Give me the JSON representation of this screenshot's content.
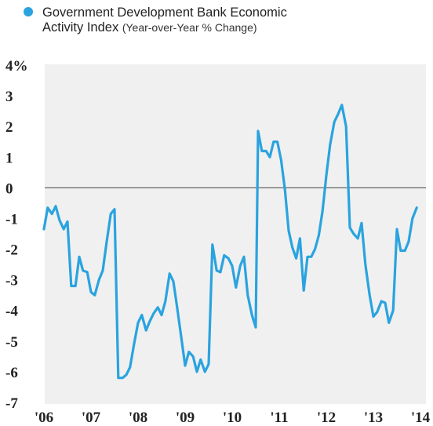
{
  "chart_data": {
    "type": "line",
    "title_line1": "Government Development Bank Economic",
    "title_line2": "Activity Index",
    "unit_note": "(Year-over-Year % Change)",
    "series_color": "#2aa3df",
    "zero_line_color": "#444444",
    "plot_background": "#f0f0f0",
    "ylim": [
      -7,
      4
    ],
    "y_ticks": [
      {
        "value": 4,
        "label": "4%"
      },
      {
        "value": 3,
        "label": "3"
      },
      {
        "value": 2,
        "label": "2"
      },
      {
        "value": 1,
        "label": "1"
      },
      {
        "value": 0,
        "label": "0"
      },
      {
        "value": -1,
        "label": "-1"
      },
      {
        "value": -2,
        "label": "-2"
      },
      {
        "value": -3,
        "label": "-3"
      },
      {
        "value": -4,
        "label": "-4"
      },
      {
        "value": -5,
        "label": "-5"
      },
      {
        "value": -6,
        "label": "-6"
      },
      {
        "value": -7,
        "label": "-7"
      }
    ],
    "xlim": [
      2006.0,
      2014.0
    ],
    "x_ticks": [
      {
        "value": 2006,
        "label": "'06"
      },
      {
        "value": 2007,
        "label": "'07"
      },
      {
        "value": 2008,
        "label": "'08"
      },
      {
        "value": 2009,
        "label": "'09"
      },
      {
        "value": 2010,
        "label": "'10"
      },
      {
        "value": 2011,
        "label": "'11"
      },
      {
        "value": 2012,
        "label": "'12"
      },
      {
        "value": 2013,
        "label": "'13"
      },
      {
        "value": 2014,
        "label": "'14"
      }
    ],
    "points": [
      [
        2006.0,
        -1.35
      ],
      [
        2006.08,
        -0.65
      ],
      [
        2006.17,
        -0.85
      ],
      [
        2006.25,
        -0.6
      ],
      [
        2006.33,
        -1.05
      ],
      [
        2006.42,
        -1.35
      ],
      [
        2006.5,
        -1.1
      ],
      [
        2006.58,
        -3.2
      ],
      [
        2006.67,
        -3.2
      ],
      [
        2006.75,
        -2.25
      ],
      [
        2006.83,
        -2.7
      ],
      [
        2006.92,
        -2.75
      ],
      [
        2007.0,
        -3.4
      ],
      [
        2007.08,
        -3.5
      ],
      [
        2007.17,
        -3.0
      ],
      [
        2007.25,
        -2.7
      ],
      [
        2007.33,
        -1.8
      ],
      [
        2007.42,
        -0.85
      ],
      [
        2007.5,
        -0.7
      ],
      [
        2007.58,
        -6.2
      ],
      [
        2007.67,
        -6.2
      ],
      [
        2007.75,
        -6.1
      ],
      [
        2007.83,
        -5.85
      ],
      [
        2007.92,
        -5.05
      ],
      [
        2008.0,
        -4.4
      ],
      [
        2008.08,
        -4.15
      ],
      [
        2008.17,
        -4.65
      ],
      [
        2008.25,
        -4.35
      ],
      [
        2008.33,
        -4.1
      ],
      [
        2008.42,
        -3.9
      ],
      [
        2008.5,
        -4.15
      ],
      [
        2008.58,
        -3.7
      ],
      [
        2008.67,
        -2.8
      ],
      [
        2008.75,
        -3.05
      ],
      [
        2008.83,
        -3.9
      ],
      [
        2008.92,
        -4.9
      ],
      [
        2009.0,
        -5.8
      ],
      [
        2009.08,
        -5.35
      ],
      [
        2009.17,
        -5.5
      ],
      [
        2009.25,
        -6.0
      ],
      [
        2009.33,
        -5.6
      ],
      [
        2009.42,
        -6.0
      ],
      [
        2009.5,
        -5.75
      ],
      [
        2009.58,
        -1.85
      ],
      [
        2009.67,
        -2.7
      ],
      [
        2009.75,
        -2.75
      ],
      [
        2009.83,
        -2.2
      ],
      [
        2009.92,
        -2.3
      ],
      [
        2010.0,
        -2.55
      ],
      [
        2010.08,
        -3.25
      ],
      [
        2010.17,
        -2.55
      ],
      [
        2010.25,
        -2.25
      ],
      [
        2010.33,
        -3.5
      ],
      [
        2010.42,
        -4.15
      ],
      [
        2010.5,
        -4.55
      ],
      [
        2010.55,
        1.85
      ],
      [
        2010.63,
        1.2
      ],
      [
        2010.72,
        1.2
      ],
      [
        2010.8,
        1.0
      ],
      [
        2010.88,
        1.5
      ],
      [
        2010.96,
        1.5
      ],
      [
        2011.04,
        0.9
      ],
      [
        2011.12,
        -0.05
      ],
      [
        2011.2,
        -1.4
      ],
      [
        2011.28,
        -1.95
      ],
      [
        2011.36,
        -2.3
      ],
      [
        2011.44,
        -1.65
      ],
      [
        2011.52,
        -3.35
      ],
      [
        2011.6,
        -2.25
      ],
      [
        2011.68,
        -2.25
      ],
      [
        2011.76,
        -2.0
      ],
      [
        2011.84,
        -1.55
      ],
      [
        2011.92,
        -0.75
      ],
      [
        2012.0,
        0.4
      ],
      [
        2012.08,
        1.4
      ],
      [
        2012.17,
        2.15
      ],
      [
        2012.25,
        2.4
      ],
      [
        2012.33,
        2.7
      ],
      [
        2012.42,
        2.0
      ],
      [
        2012.5,
        -1.3
      ],
      [
        2012.58,
        -1.5
      ],
      [
        2012.67,
        -1.65
      ],
      [
        2012.75,
        -1.15
      ],
      [
        2012.83,
        -2.5
      ],
      [
        2012.92,
        -3.5
      ],
      [
        2013.0,
        -4.2
      ],
      [
        2013.08,
        -4.05
      ],
      [
        2013.17,
        -3.7
      ],
      [
        2013.25,
        -3.75
      ],
      [
        2013.33,
        -4.4
      ],
      [
        2013.42,
        -4.0
      ],
      [
        2013.5,
        -1.35
      ],
      [
        2013.58,
        -2.05
      ],
      [
        2013.67,
        -2.05
      ],
      [
        2013.75,
        -1.75
      ],
      [
        2013.83,
        -1.0
      ],
      [
        2013.92,
        -0.65
      ]
    ]
  }
}
